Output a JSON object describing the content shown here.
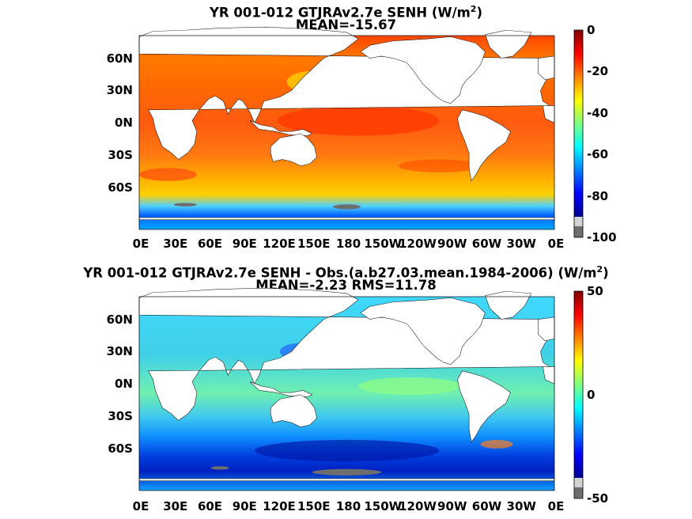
{
  "chart_data": [
    {
      "type": "heatmap",
      "title_text": "YR 001-012 GTJRAv2.7e  SENH (W/m",
      "title_sup": "2",
      "title_close": ")",
      "subtitle": "MEAN=-15.67",
      "mean": -15.67,
      "x_ticks": [
        "0E",
        "30E",
        "60E",
        "90E",
        "120E",
        "150E",
        "180",
        "150W",
        "120W",
        "90W",
        "60W",
        "30W",
        "0E"
      ],
      "y_ticks": [
        "60N",
        "30N",
        "0N",
        "30S",
        "60S"
      ],
      "colorbar": {
        "min": -100,
        "max": 0,
        "ticks": [
          "0",
          "-20",
          "-40",
          "-60",
          "-80",
          "-100"
        ],
        "colormap": "jet"
      },
      "land_color": "#ffffff",
      "ice_color": "#6e6e6e"
    },
    {
      "type": "heatmap",
      "title_text": "YR 001-012 GTJRAv2.7e SENH - Obs.(a.b27.03.mean.1984-2006) (W/m",
      "title_sup": "2",
      "title_close": ")",
      "subtitle": "MEAN=-2.23 RMS=11.78",
      "mean": -2.23,
      "rms": 11.78,
      "x_ticks": [
        "0E",
        "30E",
        "60E",
        "90E",
        "120E",
        "150E",
        "180",
        "150W",
        "120W",
        "90W",
        "60W",
        "30W",
        "0E"
      ],
      "y_ticks": [
        "60N",
        "30N",
        "0N",
        "30S",
        "60S"
      ],
      "colorbar": {
        "min": -50,
        "max": 50,
        "ticks": [
          "50",
          "0",
          "-50"
        ],
        "colormap": "jet"
      },
      "land_color": "#ffffff",
      "ice_color": "#6e6e6e"
    }
  ]
}
